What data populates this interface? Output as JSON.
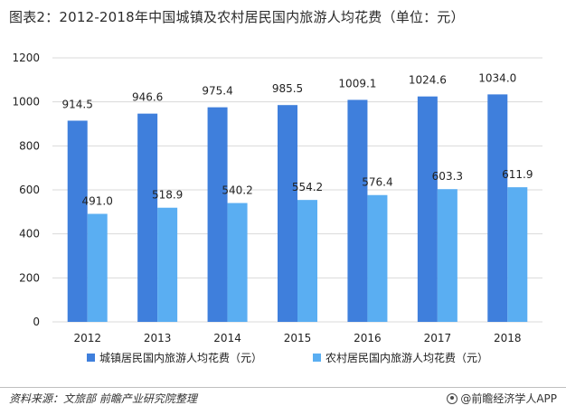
{
  "title": "图表2：2012-2018年中国城镇及农村居民国内旅游人均花费（单位：元）",
  "source": "资料来源：文旅部 前瞻产业研究院整理",
  "brand": "@前瞻经济学人APP",
  "colors": {
    "urban": "#3f7fdc",
    "rural": "#5aaef2",
    "grid": "#d9d9d9",
    "axis_text": "#222222"
  },
  "chart_data": {
    "type": "bar",
    "categories": [
      "2012",
      "2013",
      "2014",
      "2015",
      "2016",
      "2017",
      "2018"
    ],
    "series": [
      {
        "name": "城镇居民国内旅游人均花费（元）",
        "values": [
          914.5,
          946.6,
          975.4,
          985.5,
          1009.1,
          1024.6,
          1034.0
        ]
      },
      {
        "name": "农村居民国内旅游人均花费（元）",
        "values": [
          491.0,
          518.9,
          540.2,
          554.2,
          576.4,
          603.3,
          611.9
        ]
      }
    ],
    "ylim": [
      0,
      1200
    ],
    "yticks": [
      0,
      200,
      400,
      600,
      800,
      1000,
      1200
    ],
    "grid": true,
    "legend_position": "bottom",
    "title": "图表2：2012-2018年中国城镇及农村居民国内旅游人均花费（单位：元）"
  }
}
